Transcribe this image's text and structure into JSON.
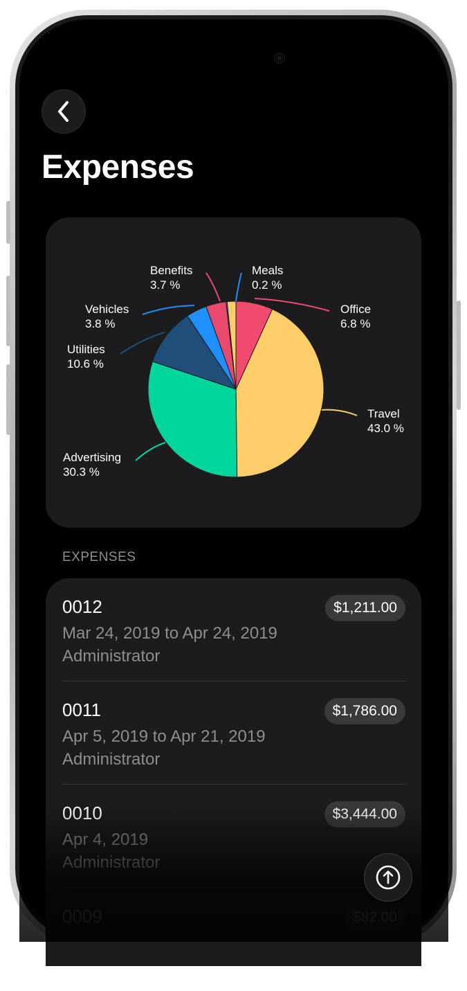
{
  "page": {
    "title": "Expenses"
  },
  "icons": {
    "back": "chevron-left-icon",
    "scroll_top": "arrow-up-circle-icon"
  },
  "chart_data": {
    "type": "pie",
    "slices": [
      {
        "label": "Office",
        "value": 6.8,
        "value_label": "6.8 %",
        "color": "#f04a6e"
      },
      {
        "label": "Travel",
        "value": 43.0,
        "value_label": "43.0 %",
        "color": "#fdcd6a"
      },
      {
        "label": "Advertising",
        "value": 30.3,
        "value_label": "30.3 %",
        "color": "#00d59c"
      },
      {
        "label": "Utilities",
        "value": 10.6,
        "value_label": "10.6 %",
        "color": "#1f4e79"
      },
      {
        "label": "Vehicles",
        "value": 3.8,
        "value_label": "3.8 %",
        "color": "#1e90ff"
      },
      {
        "label": "Benefits",
        "value": 3.7,
        "value_label": "3.7 %",
        "color": "#e8496c"
      },
      {
        "label": "Meals",
        "value": 0.2,
        "value_label": "0.2 %",
        "color": "#1e90ff"
      }
    ],
    "gap_color": "#fdcd6a"
  },
  "expenses": {
    "section_label": "EXPENSES",
    "items": [
      {
        "id": "0012",
        "dates": "Mar 24, 2019 to Apr 24, 2019",
        "user": "Administrator",
        "amount": "$1,211.00"
      },
      {
        "id": "0011",
        "dates": "Apr 5, 2019 to Apr 21, 2019",
        "user": "Administrator",
        "amount": "$1,786.00"
      },
      {
        "id": "0010",
        "dates": "Apr 4, 2019",
        "user": "Administrator",
        "amount": "$3,444.00"
      },
      {
        "id": "0009",
        "dates": "",
        "user": "",
        "amount": "$82.00"
      }
    ]
  },
  "colors": {
    "background": "#000000",
    "card": "#1c1c1e",
    "secondary_text": "#8e8e93",
    "pill": "#3a3a3c"
  }
}
